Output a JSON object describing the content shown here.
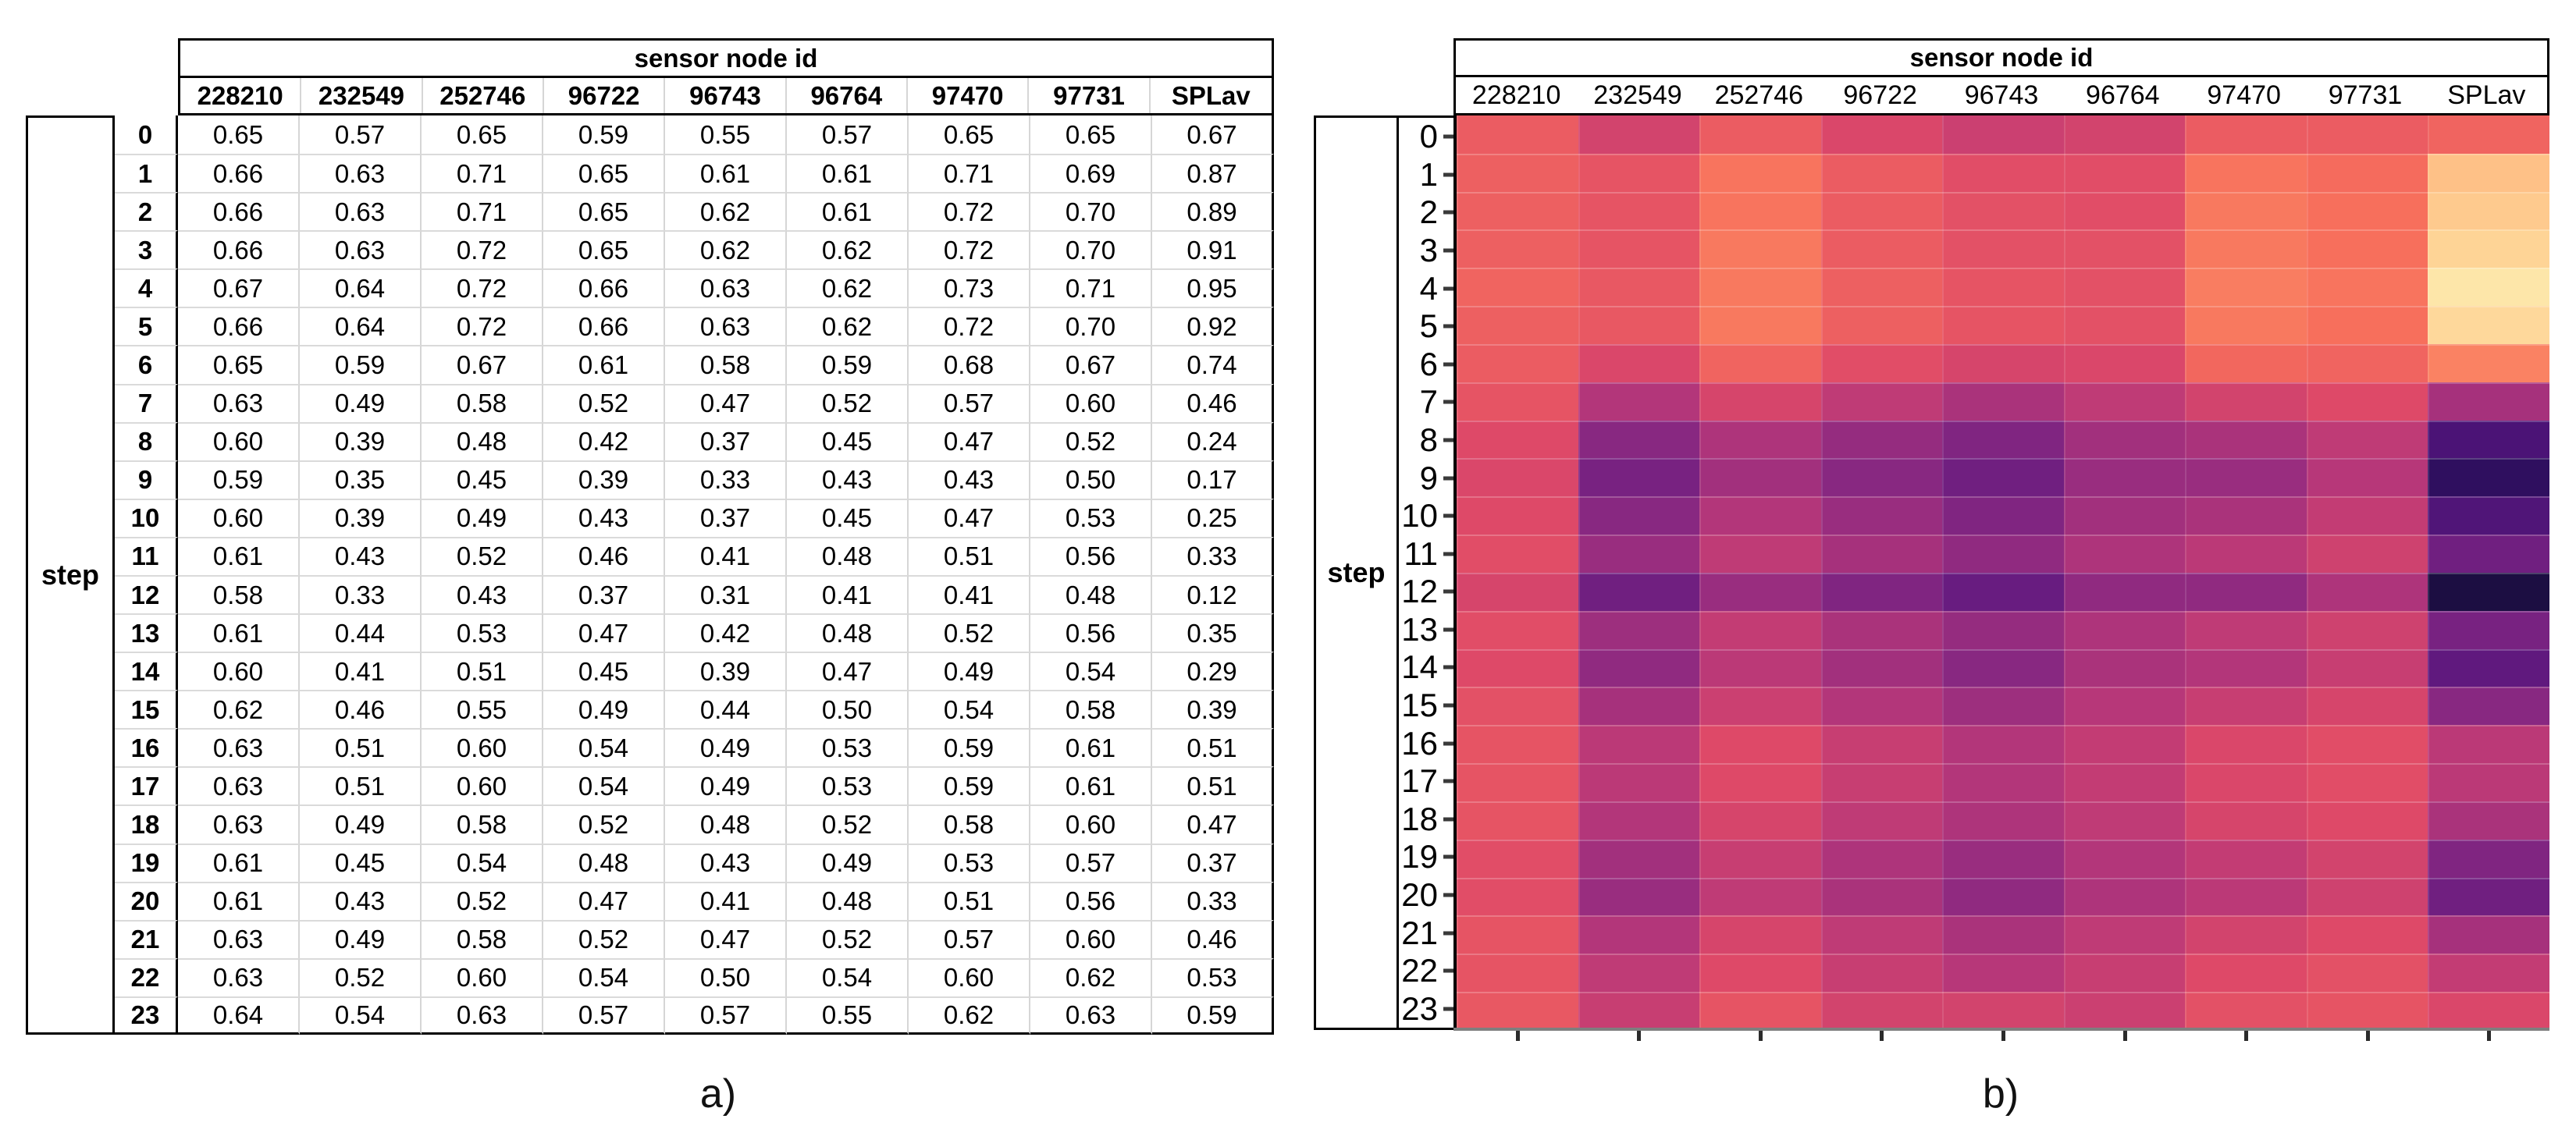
{
  "captions": {
    "a": "a)",
    "b": "b)"
  },
  "chart_data": {
    "type": "heatmap",
    "title": "sensor node id",
    "xlabel": "sensor node id",
    "ylabel": "step",
    "columns": [
      "228210",
      "232549",
      "252746",
      "96722",
      "96743",
      "96764",
      "97470",
      "97731",
      "SPLav"
    ],
    "rows": [
      "0",
      "1",
      "2",
      "3",
      "4",
      "5",
      "6",
      "7",
      "8",
      "9",
      "10",
      "11",
      "12",
      "13",
      "14",
      "15",
      "16",
      "17",
      "18",
      "19",
      "20",
      "21",
      "22",
      "23"
    ],
    "values": [
      [
        0.65,
        0.57,
        0.65,
        0.59,
        0.55,
        0.57,
        0.65,
        0.65,
        0.67
      ],
      [
        0.66,
        0.63,
        0.71,
        0.65,
        0.61,
        0.61,
        0.71,
        0.69,
        0.87
      ],
      [
        0.66,
        0.63,
        0.71,
        0.65,
        0.62,
        0.61,
        0.72,
        0.7,
        0.89
      ],
      [
        0.66,
        0.63,
        0.72,
        0.65,
        0.62,
        0.62,
        0.72,
        0.7,
        0.91
      ],
      [
        0.67,
        0.64,
        0.72,
        0.66,
        0.63,
        0.62,
        0.73,
        0.71,
        0.95
      ],
      [
        0.66,
        0.64,
        0.72,
        0.66,
        0.63,
        0.62,
        0.72,
        0.7,
        0.92
      ],
      [
        0.65,
        0.59,
        0.67,
        0.61,
        0.58,
        0.59,
        0.68,
        0.67,
        0.74
      ],
      [
        0.63,
        0.49,
        0.58,
        0.52,
        0.47,
        0.52,
        0.57,
        0.6,
        0.46
      ],
      [
        0.6,
        0.39,
        0.48,
        0.42,
        0.37,
        0.45,
        0.47,
        0.52,
        0.24
      ],
      [
        0.59,
        0.35,
        0.45,
        0.39,
        0.33,
        0.43,
        0.43,
        0.5,
        0.17
      ],
      [
        0.6,
        0.39,
        0.49,
        0.43,
        0.37,
        0.45,
        0.47,
        0.53,
        0.25
      ],
      [
        0.61,
        0.43,
        0.52,
        0.46,
        0.41,
        0.48,
        0.51,
        0.56,
        0.33
      ],
      [
        0.58,
        0.33,
        0.43,
        0.37,
        0.31,
        0.41,
        0.41,
        0.48,
        0.12
      ],
      [
        0.61,
        0.44,
        0.53,
        0.47,
        0.42,
        0.48,
        0.52,
        0.56,
        0.35
      ],
      [
        0.6,
        0.41,
        0.51,
        0.45,
        0.39,
        0.47,
        0.49,
        0.54,
        0.29
      ],
      [
        0.62,
        0.46,
        0.55,
        0.49,
        0.44,
        0.5,
        0.54,
        0.58,
        0.39
      ],
      [
        0.63,
        0.51,
        0.6,
        0.54,
        0.49,
        0.53,
        0.59,
        0.61,
        0.51
      ],
      [
        0.63,
        0.51,
        0.6,
        0.54,
        0.49,
        0.53,
        0.59,
        0.61,
        0.51
      ],
      [
        0.63,
        0.49,
        0.58,
        0.52,
        0.48,
        0.52,
        0.58,
        0.6,
        0.47
      ],
      [
        0.61,
        0.45,
        0.54,
        0.48,
        0.43,
        0.49,
        0.53,
        0.57,
        0.37
      ],
      [
        0.61,
        0.43,
        0.52,
        0.47,
        0.41,
        0.48,
        0.51,
        0.56,
        0.33
      ],
      [
        0.63,
        0.49,
        0.58,
        0.52,
        0.47,
        0.52,
        0.57,
        0.6,
        0.46
      ],
      [
        0.63,
        0.52,
        0.6,
        0.54,
        0.5,
        0.54,
        0.6,
        0.62,
        0.53
      ],
      [
        0.64,
        0.54,
        0.63,
        0.57,
        0.57,
        0.55,
        0.62,
        0.63,
        0.59
      ]
    ],
    "value_format": "2-decimals",
    "colormap": "magma",
    "vmin": 0,
    "vmax": 1,
    "colormap_stops": [
      "#000004",
      "#140E36",
      "#3B0F70",
      "#641A80",
      "#8C2981",
      "#B73779",
      "#DE4968",
      "#F76F5C",
      "#FE9F6D",
      "#FECF92",
      "#FCFDBF"
    ],
    "legend": "none",
    "grid": "off"
  }
}
